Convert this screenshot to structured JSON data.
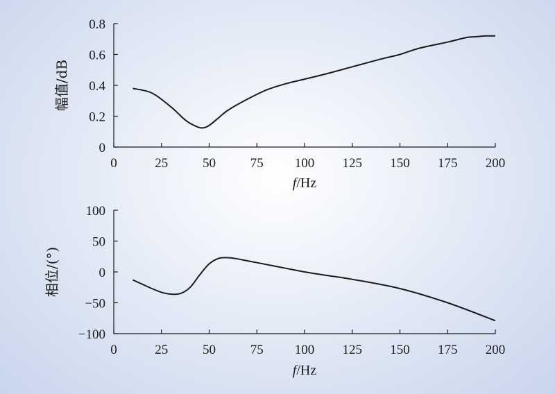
{
  "chart_data": [
    {
      "type": "line",
      "xlabel": "f/Hz",
      "ylabel": "幅值/dB",
      "xlim": [
        0,
        200
      ],
      "ylim": [
        0,
        0.8
      ],
      "xticks": [
        "0",
        "25",
        "50",
        "75",
        "100",
        "125",
        "150",
        "175",
        "200"
      ],
      "yticks": [
        "0",
        "0.2",
        "0.4",
        "0.6",
        "0.8"
      ],
      "grid": false,
      "series": [
        {
          "x": [
            10,
            20,
            30,
            38,
            44,
            47,
            50,
            55,
            60,
            70,
            80,
            90,
            100,
            110,
            125,
            140,
            150,
            160,
            175,
            185,
            190,
            195,
            200
          ],
          "values": [
            0.38,
            0.35,
            0.26,
            0.17,
            0.13,
            0.125,
            0.14,
            0.19,
            0.24,
            0.31,
            0.37,
            0.41,
            0.44,
            0.47,
            0.52,
            0.57,
            0.6,
            0.64,
            0.68,
            0.71,
            0.715,
            0.72,
            0.72
          ]
        }
      ]
    },
    {
      "type": "line",
      "xlabel": "f/Hz",
      "ylabel": "相位/(°)",
      "xlim": [
        0,
        200
      ],
      "ylim": [
        -100,
        100
      ],
      "xticks": [
        "0",
        "25",
        "50",
        "75",
        "100",
        "125",
        "150",
        "175",
        "200"
      ],
      "yticks": [
        "−100",
        "−50",
        "0",
        "50",
        "100"
      ],
      "grid": false,
      "series": [
        {
          "x": [
            10,
            15,
            20,
            25,
            30,
            35,
            40,
            45,
            50,
            55,
            60,
            65,
            70,
            80,
            90,
            100,
            110,
            125,
            150,
            175,
            200
          ],
          "values": [
            -13,
            -20,
            -27,
            -33,
            -36,
            -35,
            -25,
            -5,
            13,
            22,
            23,
            21,
            18,
            12,
            6,
            0,
            -5,
            -12,
            -27,
            -50,
            -79
          ]
        }
      ]
    }
  ]
}
